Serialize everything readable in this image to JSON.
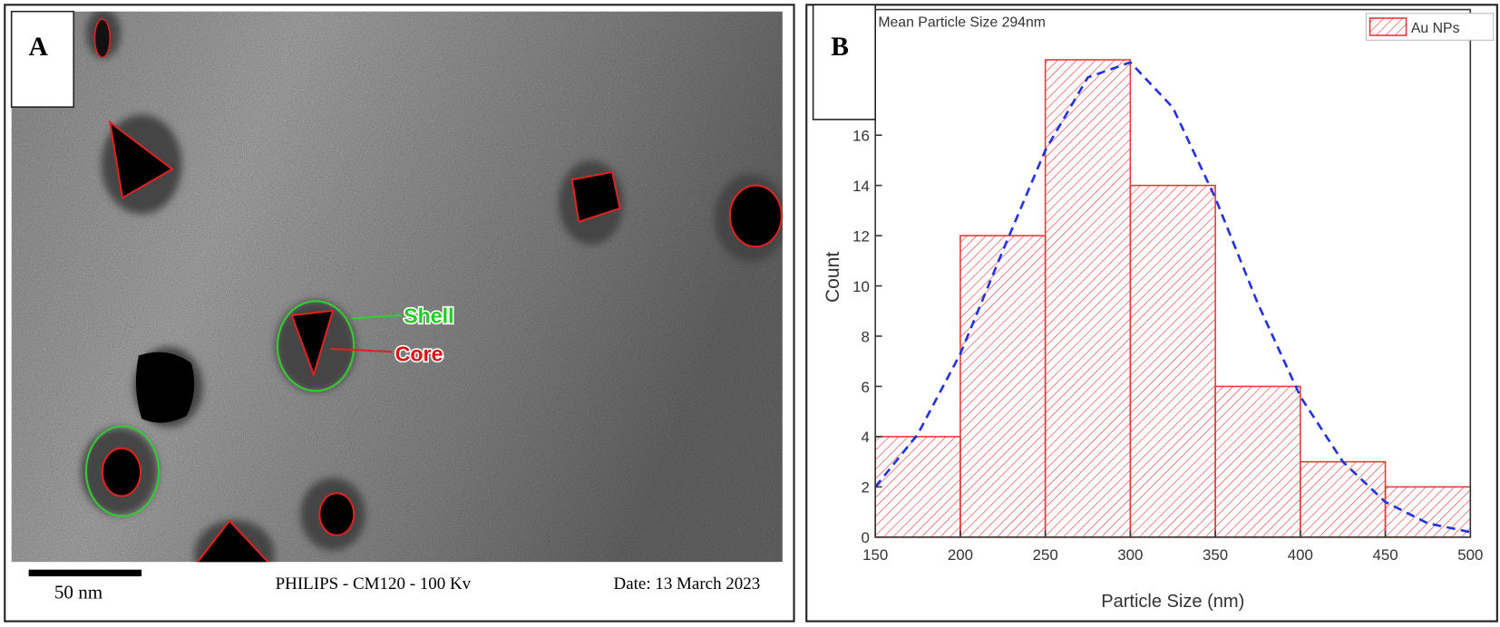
{
  "panel_a": {
    "label": "A",
    "shell": "Shell",
    "core": "Core",
    "scale_bar": "50 nm",
    "instrument": "PHILIPS - CM120 - 100 Kv",
    "date": "Date: 13 March 2023"
  },
  "chart_data": {
    "type": "histogram",
    "panel_label": "B",
    "title": "Mean Particle Size 294nm",
    "x_label": "Particle Size (nm)",
    "y_label": "Count",
    "bins": [
      150,
      200,
      250,
      300,
      350,
      400,
      450,
      500
    ],
    "series": [
      {
        "name": "Au NPs",
        "color": "#e03c3c",
        "values": [
          4,
          12,
          19,
          14,
          6,
          3,
          2
        ]
      }
    ],
    "fit": {
      "color": "#2233dd",
      "x": [
        150,
        175,
        200,
        225,
        250,
        275,
        300,
        325,
        350,
        375,
        400,
        425,
        450,
        475,
        500
      ],
      "values": [
        2.0,
        4.1,
        7.3,
        11.4,
        15.4,
        18.3,
        18.9,
        17.1,
        13.5,
        9.3,
        5.6,
        3.0,
        1.4,
        0.55,
        0.2
      ]
    },
    "xlim": [
      150,
      500
    ],
    "xticks": [
      150,
      200,
      250,
      300,
      350,
      400,
      450,
      500
    ],
    "ylim": [
      0,
      21
    ],
    "yticks": [
      0,
      2,
      4,
      6,
      8,
      10,
      12,
      14,
      16
    ],
    "legend": "upper right"
  }
}
